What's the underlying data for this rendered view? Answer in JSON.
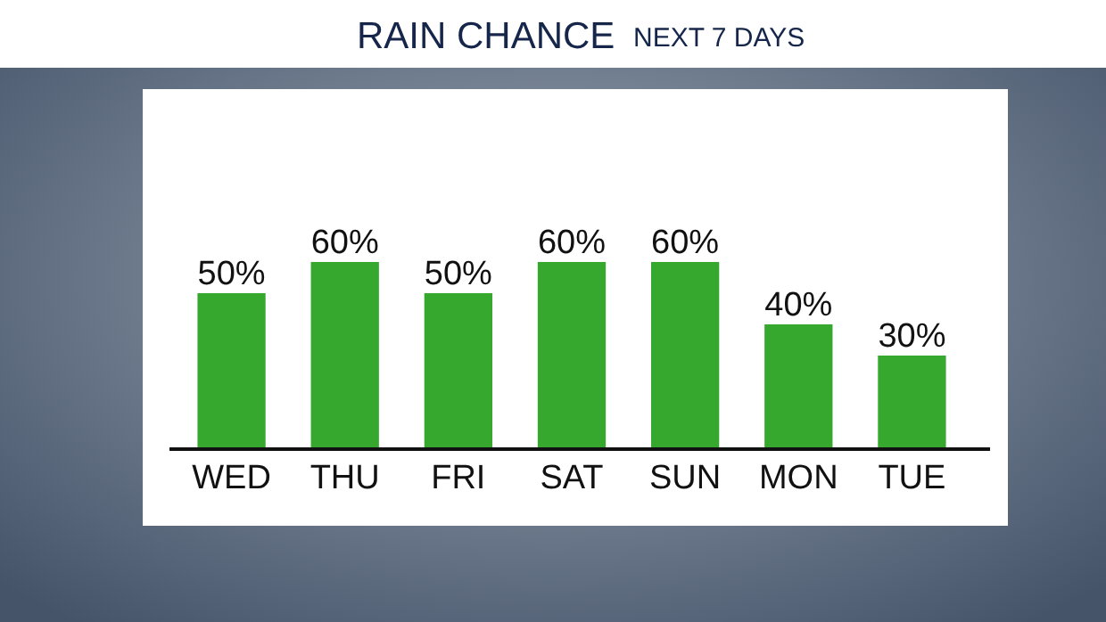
{
  "chart_data": {
    "type": "bar",
    "title": "RAIN CHANCE",
    "subtitle": "NEXT 7 DAYS",
    "categories": [
      "WED",
      "THU",
      "FRI",
      "SAT",
      "SUN",
      "MON",
      "TUE"
    ],
    "values": [
      50,
      60,
      50,
      60,
      60,
      40,
      30
    ],
    "value_labels": [
      "50%",
      "60%",
      "50%",
      "60%",
      "60%",
      "40%",
      "30%"
    ],
    "color": "#36a82e"
  }
}
